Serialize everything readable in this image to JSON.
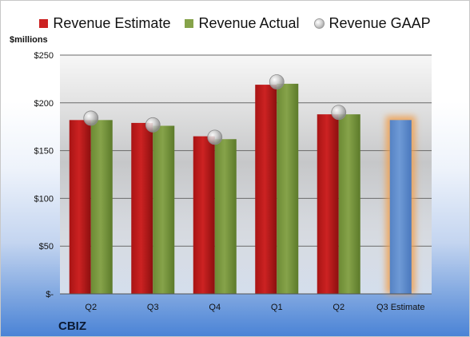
{
  "legend": {
    "estimate": "Revenue Estimate",
    "actual": "Revenue Actual",
    "gaap": "Revenue GAAP"
  },
  "unit_label": "$millions",
  "company": "CBIZ",
  "colors": {
    "estimate": "#cc2222",
    "actual": "#86a34a",
    "gaap": "#b8b8b8",
    "forecast": "#6e9ad6",
    "forecast_glow": "#f0a050"
  },
  "chart_data": {
    "type": "bar",
    "categories": [
      "Q2",
      "Q3",
      "Q4",
      "Q1",
      "Q2",
      "Q3 Estimate"
    ],
    "series": [
      {
        "name": "Revenue Estimate",
        "values": [
          182,
          179,
          165,
          219,
          188,
          null
        ]
      },
      {
        "name": "Revenue Actual",
        "values": [
          182,
          176,
          162,
          220,
          188,
          null
        ]
      },
      {
        "name": "Revenue GAAP",
        "values": [
          184,
          177,
          164,
          222,
          190,
          null
        ]
      }
    ],
    "forecast": {
      "category": "Q3 Estimate",
      "value": 182
    },
    "yticks": [
      0,
      50,
      100,
      150,
      200,
      250
    ],
    "ytick_labels": [
      "$-",
      "$50",
      "$100",
      "$150",
      "$200",
      "$250"
    ],
    "ylim": [
      0,
      250
    ],
    "grid": true,
    "legend_position": "top"
  }
}
